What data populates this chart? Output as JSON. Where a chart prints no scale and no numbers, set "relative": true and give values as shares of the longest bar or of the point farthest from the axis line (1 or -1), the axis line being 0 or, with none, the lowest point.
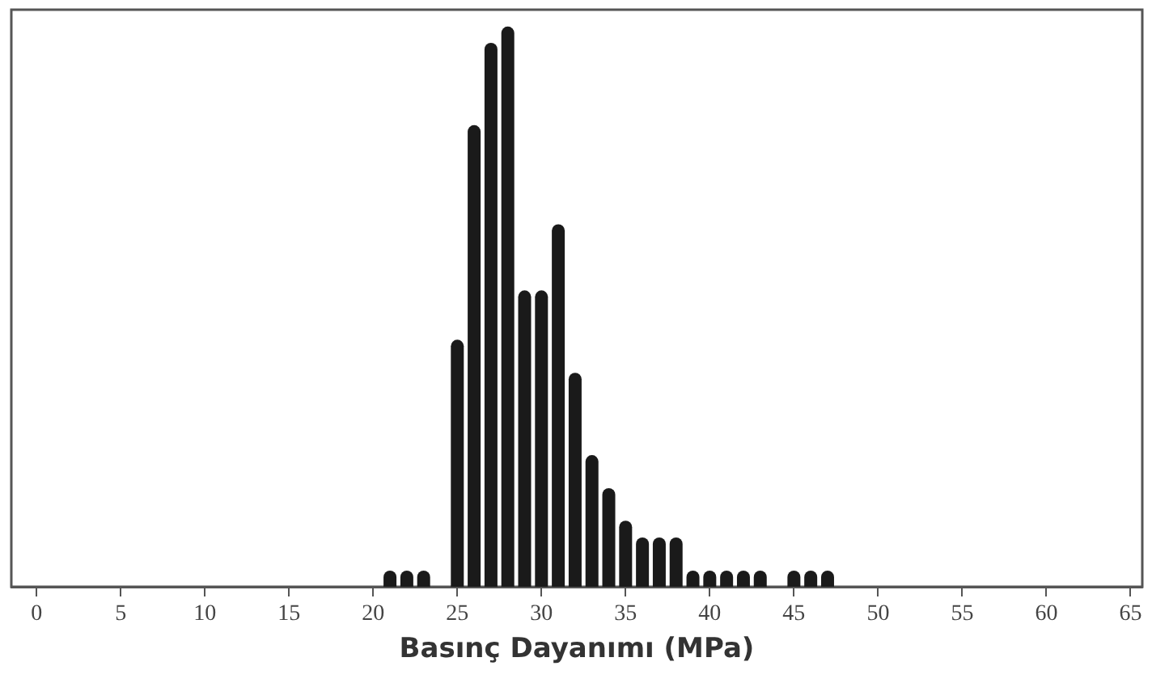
{
  "chart_data": {
    "type": "bar",
    "relative": true,
    "xlabel": "Basınç Dayanımı (MPa)",
    "color": "#1a1a1a",
    "x": [
      21,
      22,
      23,
      25,
      26,
      27,
      28,
      29,
      30,
      31,
      32,
      33,
      34,
      35,
      36,
      37,
      38,
      39,
      40,
      41,
      42,
      43,
      45,
      46,
      47
    ],
    "values": [
      0.029,
      0.029,
      0.029,
      0.441,
      0.824,
      0.971,
      1,
      0.529,
      0.529,
      0.647,
      0.382,
      0.235,
      0.176,
      0.118,
      0.088,
      0.088,
      0.088,
      0.029,
      0.029,
      0.029,
      0.029,
      0.029,
      0.029,
      0.029,
      0.029
    ],
    "xlim": [
      -1.5,
      65.7
    ],
    "xticks": [
      0,
      5,
      10,
      15,
      20,
      25,
      30,
      35,
      40,
      45,
      50,
      55,
      60,
      65
    ]
  }
}
